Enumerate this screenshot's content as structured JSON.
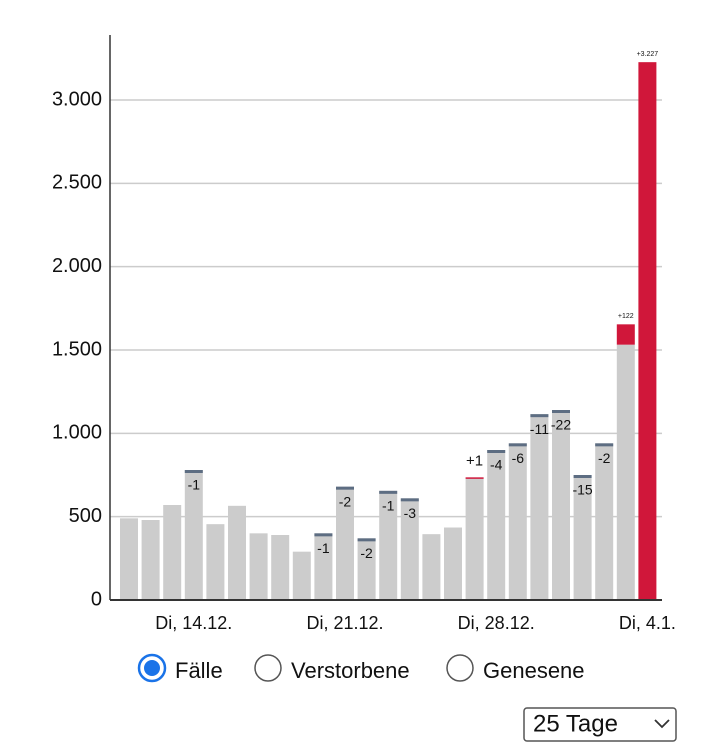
{
  "chart_data": {
    "type": "bar",
    "categories": [
      null,
      null,
      null,
      "Di, 14.12.",
      null,
      null,
      null,
      null,
      null,
      null,
      "Di, 21.12.",
      null,
      null,
      null,
      null,
      null,
      null,
      "Di, 28.12.",
      null,
      null,
      null,
      null,
      null,
      null,
      "Di, 4.1."
    ],
    "series": [
      {
        "color": "#cccccc",
        "values": [
          490,
          480,
          570,
          780,
          455,
          565,
          400,
          390,
          290,
          400,
          680,
          370,
          655,
          610,
          395,
          435,
          735,
          900,
          940,
          1115,
          1140,
          750,
          940,
          1532,
          null
        ]
      },
      {
        "color": "#d0173a",
        "values": [
          null,
          null,
          null,
          null,
          null,
          null,
          null,
          null,
          null,
          null,
          null,
          null,
          null,
          null,
          null,
          null,
          1,
          null,
          null,
          null,
          null,
          null,
          null,
          122,
          3227
        ],
        "value_labels": [
          null,
          null,
          null,
          null,
          null,
          null,
          null,
          null,
          null,
          null,
          null,
          null,
          null,
          null,
          null,
          null,
          "+1",
          null,
          null,
          null,
          null,
          null,
          null,
          "+122",
          "+3.227"
        ]
      }
    ],
    "corrections": {
      "color": "#5d6d82",
      "values": [
        null,
        null,
        null,
        -1,
        null,
        null,
        null,
        null,
        null,
        -1,
        -2,
        -2,
        -1,
        -3,
        null,
        null,
        null,
        -4,
        -6,
        -11,
        -22,
        -15,
        -2,
        null,
        null
      ]
    },
    "ylim": [
      0,
      3390
    ],
    "yticks": [
      0,
      500,
      {
        "value": 1000,
        "label": "1.000"
      },
      {
        "value": 1500,
        "label": "1.500"
      },
      {
        "value": 2000,
        "label": "2.000"
      },
      {
        "value": 2500,
        "label": "2.500"
      },
      {
        "value": 3000,
        "label": "3.000"
      }
    ],
    "grid": true
  },
  "controls": {
    "options": [
      "Fälle",
      "Verstorbene",
      "Genesene"
    ],
    "selected": 0,
    "range": "25 Tage"
  }
}
